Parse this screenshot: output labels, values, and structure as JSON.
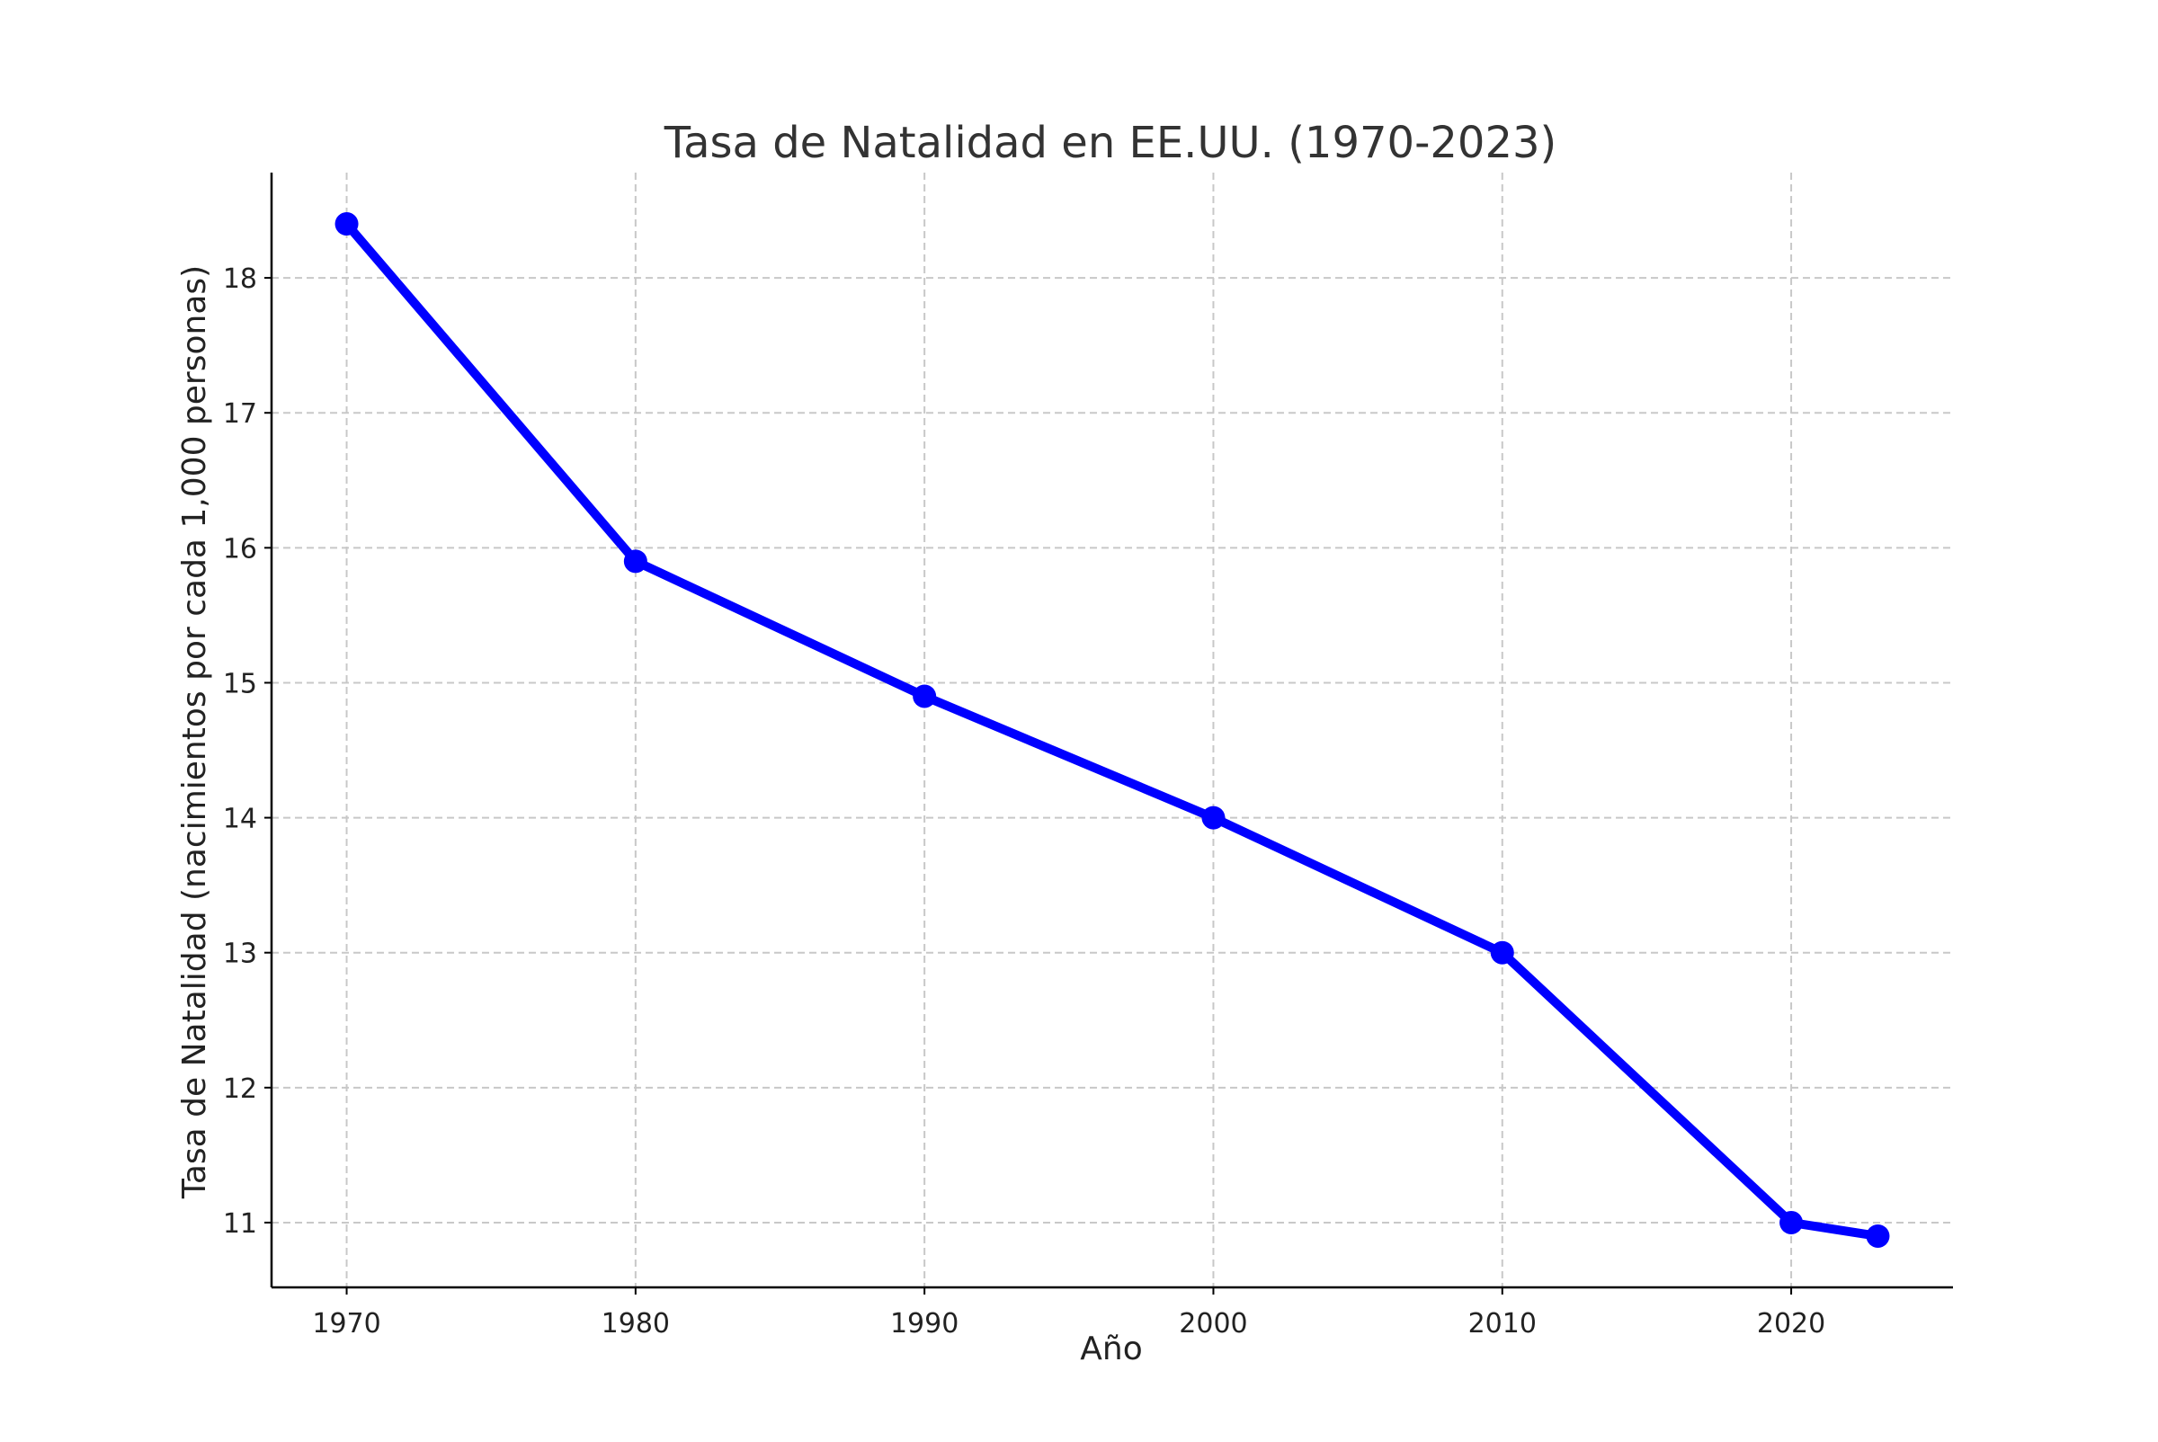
{
  "chart_data": {
    "type": "line",
    "title": "Tasa de Natalidad en EE.UU. (1970-2023)",
    "xlabel": "Año",
    "ylabel": "Tasa de Natalidad (nacimientos por cada 1,000 personas)",
    "x": [
      1970,
      1980,
      1990,
      2000,
      2010,
      2020,
      2023
    ],
    "series": [
      {
        "values": [
          18.4,
          15.9,
          14.9,
          14.0,
          13.0,
          11.0,
          10.9
        ],
        "color": "#0000ff",
        "marker": "circle"
      }
    ],
    "xticks": [
      1970,
      1980,
      1990,
      2000,
      2010,
      2020
    ],
    "yticks": [
      11,
      12,
      13,
      14,
      15,
      16,
      17,
      18
    ],
    "xlim": [
      1967.4,
      2025.6
    ],
    "ylim": [
      10.52,
      18.78
    ],
    "grid": true,
    "legend": false
  }
}
